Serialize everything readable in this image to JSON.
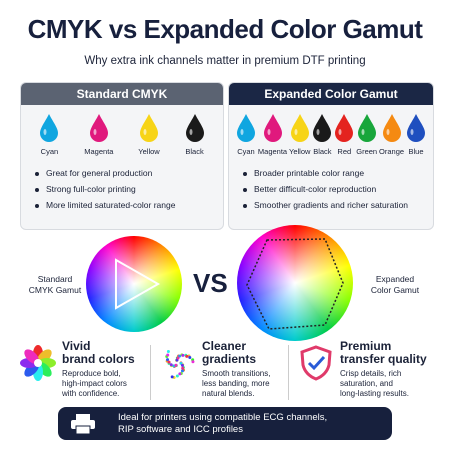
{
  "header": {
    "title": "CMYK vs Expanded Color Gamut",
    "subtitle": "Why extra ink channels matter in premium DTF printing"
  },
  "panels": [
    {
      "title": "Standard CMYK",
      "inks": [
        {
          "name": "Cyan",
          "color": "#10a6e0"
        },
        {
          "name": "Magenta",
          "color": "#e0197d"
        },
        {
          "name": "Yellow",
          "color": "#f7d417"
        },
        {
          "name": "Black",
          "color": "#1a1a1a"
        }
      ],
      "bullets": [
        "Great for general production",
        "Strong full-color printing",
        "More limited saturated-color range"
      ]
    },
    {
      "title": "Expanded Color Gamut",
      "inks": [
        {
          "name": "Cyan",
          "color": "#10a6e0"
        },
        {
          "name": "Magenta",
          "color": "#e0197d"
        },
        {
          "name": "Yellow",
          "color": "#f7d417"
        },
        {
          "name": "Black",
          "color": "#1a1a1a"
        },
        {
          "name": "Red",
          "color": "#e4231f"
        },
        {
          "name": "Green",
          "color": "#18a63b"
        },
        {
          "name": "Orange",
          "color": "#f58a12"
        },
        {
          "name": "Blue",
          "color": "#1f4fbf"
        }
      ],
      "bullets": [
        "Broader printable color range",
        "Better difficult-color reproduction",
        "Smoother gradients and richer saturation"
      ]
    }
  ],
  "gamut": {
    "left_label": [
      "Standard",
      "CMYK Gamut"
    ],
    "vs": "VS",
    "right_label": [
      "Expanded",
      "Color Gamut"
    ]
  },
  "features": [
    {
      "title": [
        "Vivid",
        "brand colors"
      ],
      "text": [
        "Reproduce bold,",
        "high-impact colors",
        "with confidence."
      ]
    },
    {
      "title": [
        "Cleaner",
        "gradients"
      ],
      "text": [
        "Smooth transitions,",
        "less banding, more",
        "natural blends."
      ]
    },
    {
      "title": [
        "Premium",
        "transfer quality"
      ],
      "text": [
        "Crisp details, rich",
        "saturation, and",
        "long-lasting results."
      ]
    }
  ],
  "footer": {
    "lines": [
      "Ideal for printers using compatible ECG channels,",
      "RIP software and ICC profiles"
    ]
  }
}
